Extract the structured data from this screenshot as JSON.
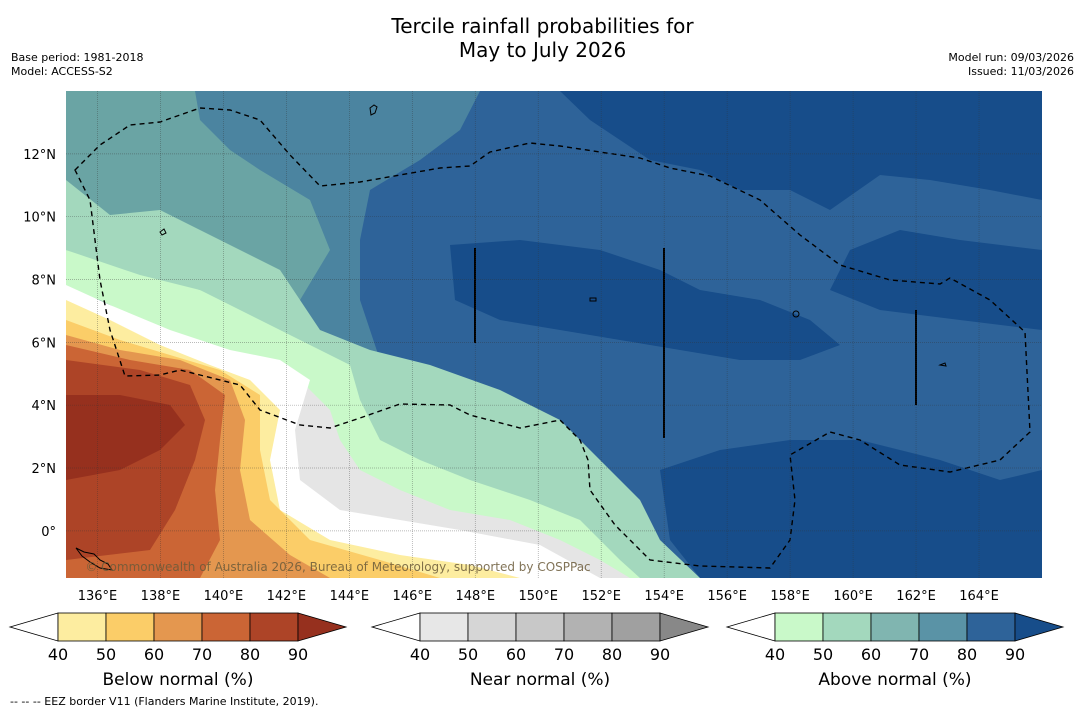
{
  "title_line1": "Tercile rainfall probabilities for",
  "title_line2": "May to July 2026",
  "meta_left": [
    "Base period: 1981-2018",
    "Model: ACCESS-S2"
  ],
  "meta_right": [
    "Model run: 09/03/2026",
    "Issued: 11/03/2026"
  ],
  "attribution": "© Commonwealth of Australia 2026, Bureau of Meteorology, supported by COSPPac",
  "footer_note": "--  --  -- EEZ border V11 (Flanders Marine Institute, 2019).",
  "lon_ticks": [
    "136°E",
    "138°E",
    "140°E",
    "142°E",
    "144°E",
    "146°E",
    "148°E",
    "150°E",
    "152°E",
    "154°E",
    "156°E",
    "158°E",
    "160°E",
    "162°E",
    "164°E"
  ],
  "lon_values": [
    136,
    138,
    140,
    142,
    144,
    146,
    148,
    150,
    152,
    154,
    156,
    158,
    160,
    162,
    164
  ],
  "lat_ticks": [
    "12°N",
    "10°N",
    "8°N",
    "6°N",
    "4°N",
    "2°N",
    "0°"
  ],
  "lat_values": [
    12,
    10,
    8,
    6,
    4,
    2,
    0
  ],
  "map_extent": {
    "lon": [
      135,
      166
    ],
    "lat": [
      -1.5,
      14
    ]
  },
  "colorbars": [
    {
      "name": "below",
      "label": "Below normal (%)",
      "ticks": [
        "40",
        "50",
        "60",
        "70",
        "80",
        "90"
      ],
      "low_color": "#ffffff",
      "colors": [
        "#fdeda0",
        "#fbcd68",
        "#e4974f",
        "#cb6535",
        "#ad4427"
      ],
      "high_color": "#96301e"
    },
    {
      "name": "near",
      "label": "Near normal (%)",
      "ticks": [
        "40",
        "50",
        "60",
        "70",
        "80",
        "90"
      ],
      "low_color": "#ffffff",
      "colors": [
        "#e7e7e7",
        "#d6d6d6",
        "#c8c8c8",
        "#b2b2b2",
        "#a0a0a0"
      ],
      "high_color": "#888888"
    },
    {
      "name": "above",
      "label": "Above normal (%)",
      "ticks": [
        "40",
        "50",
        "60",
        "70",
        "80",
        "90"
      ],
      "low_color": "#ffffff",
      "colors": [
        "#c9f9c9",
        "#a3d8bd",
        "#80b5b0",
        "#5a93a6",
        "#2e6399"
      ],
      "high_color": "#174d8a"
    }
  ],
  "colors": {
    "above_40": "#c9f9c9",
    "above_50": "#a3d8bd",
    "above_60": "#6aa4a4",
    "above_70": "#4b84a0",
    "above_80": "#2e6399",
    "above_90": "#174d8a",
    "near_40": "#e5e5e5",
    "below_40": "#fdeda0",
    "below_50": "#fbcd68",
    "below_60": "#e4974f",
    "below_70": "#cb6535",
    "below_80": "#ad4427",
    "below_90": "#96301e"
  }
}
